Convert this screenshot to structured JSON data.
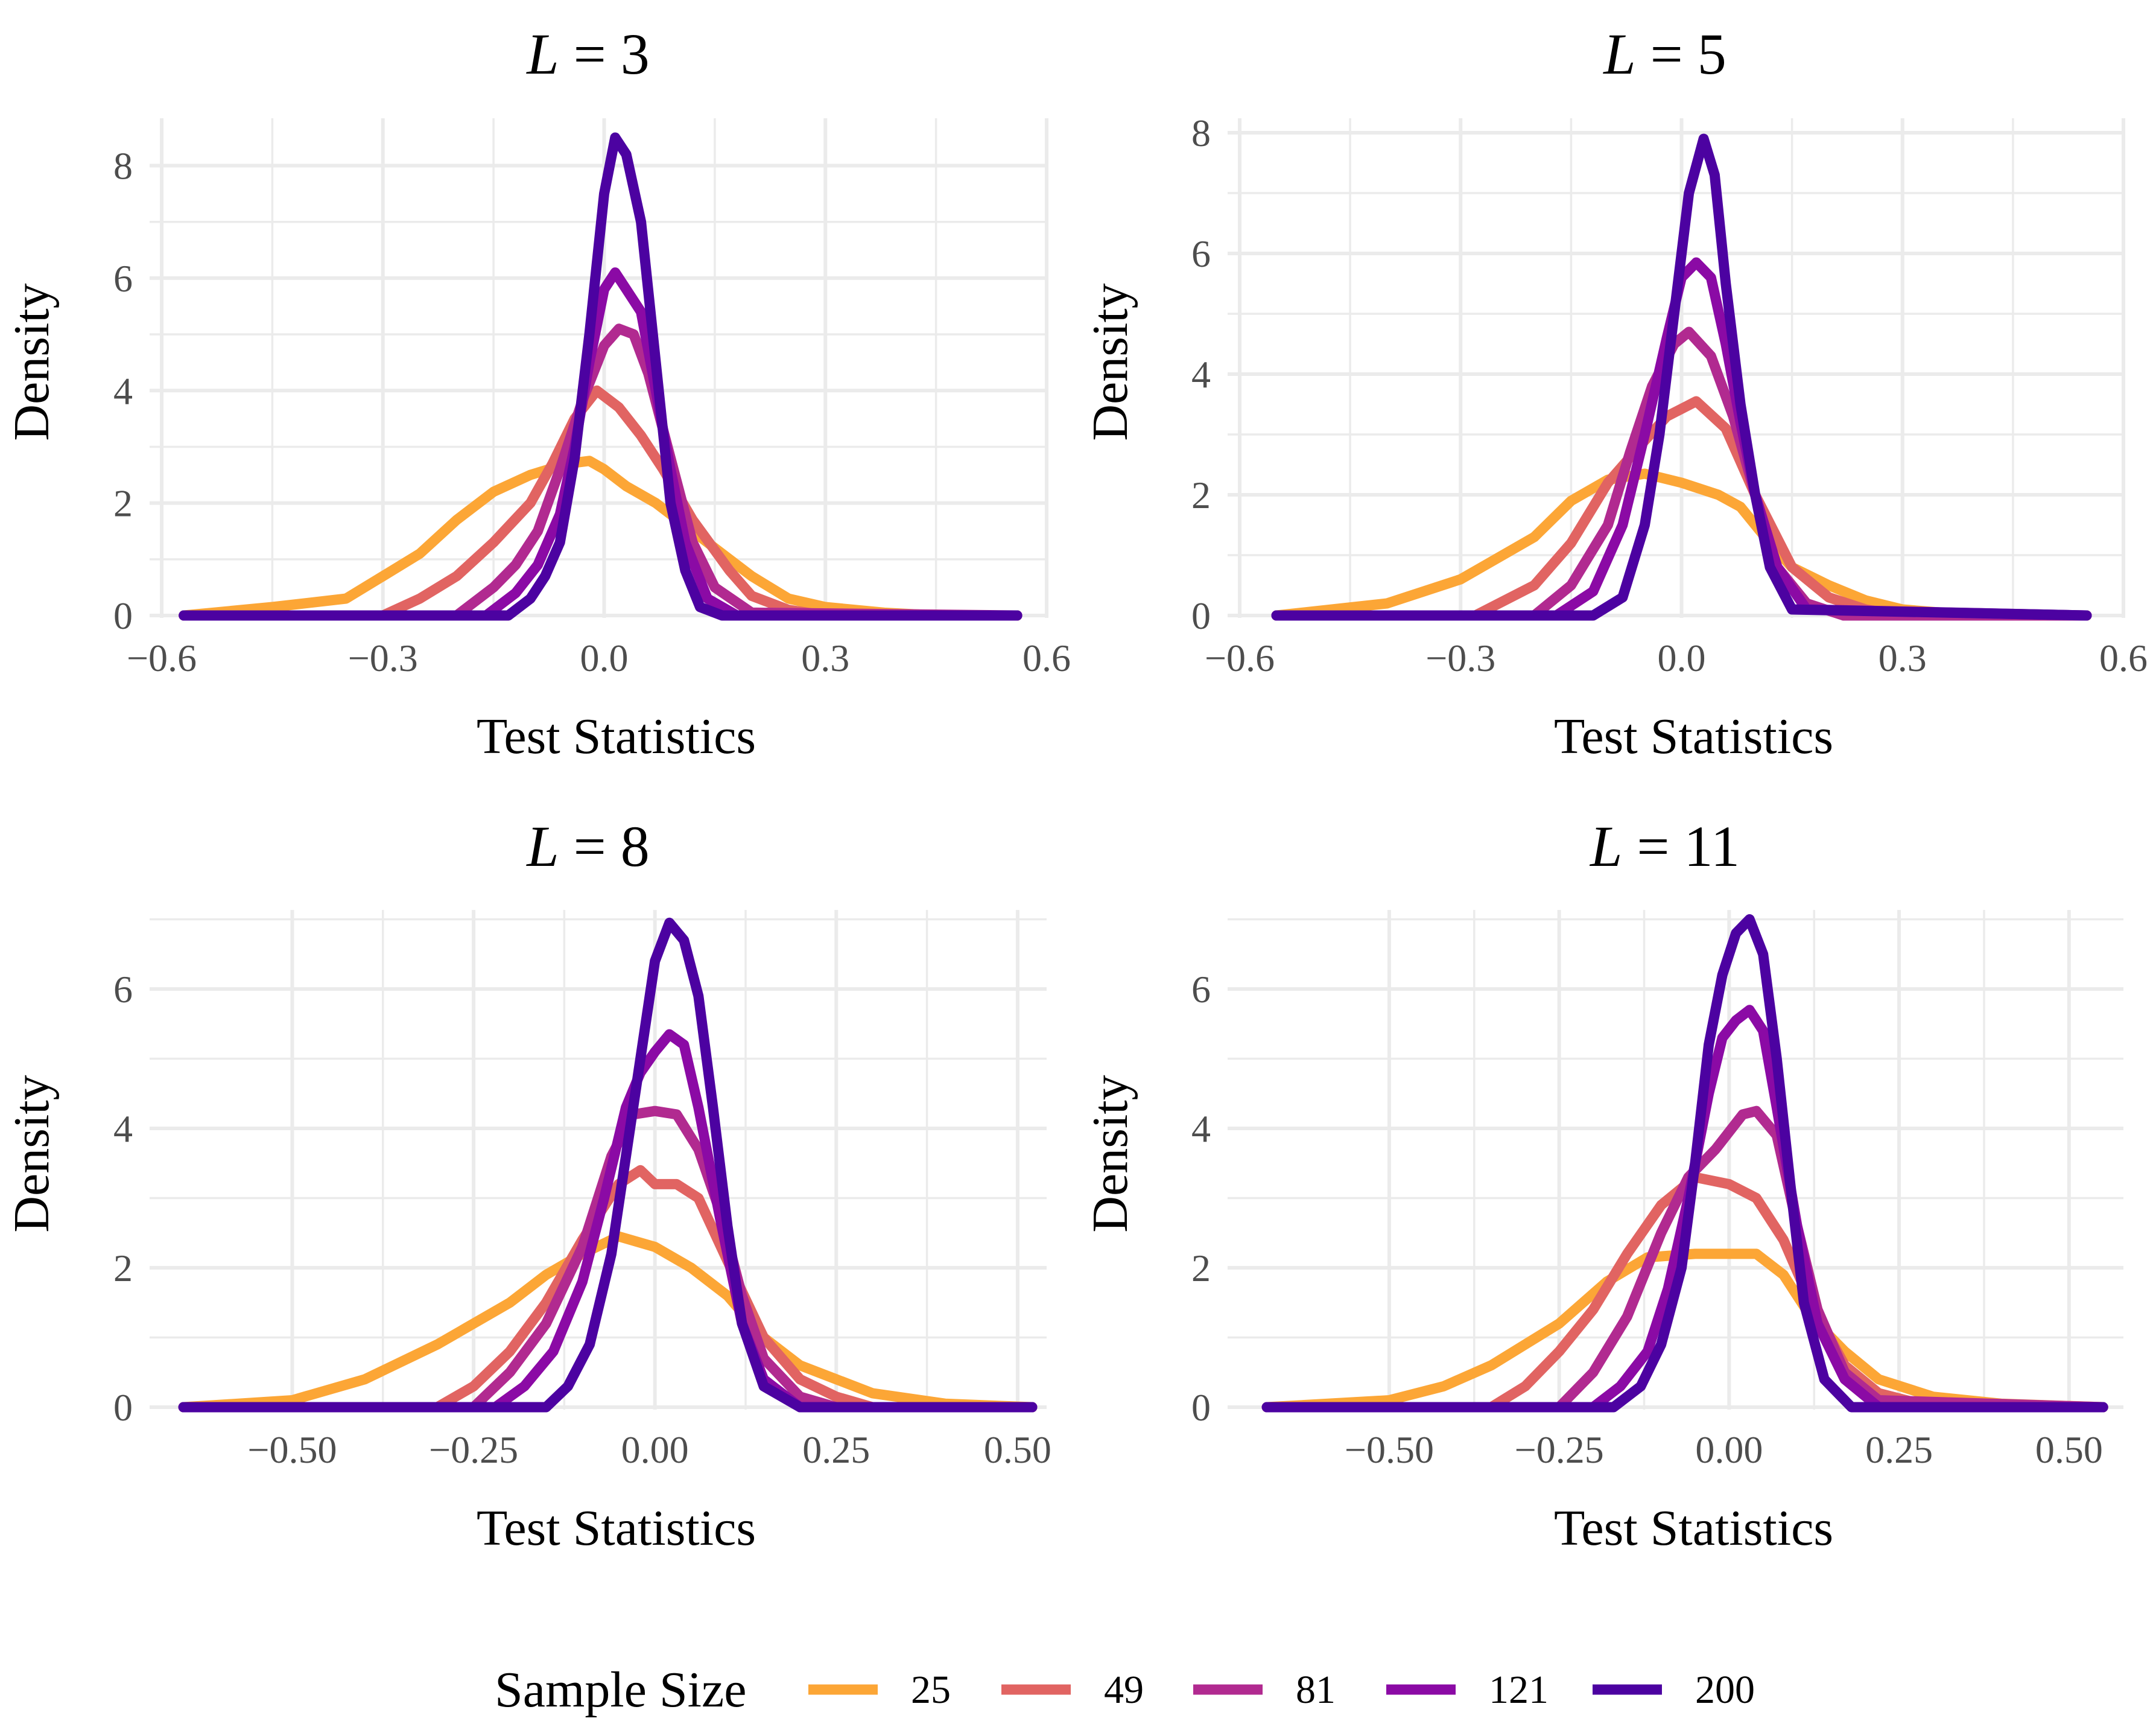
{
  "legend": {
    "title": "Sample Size",
    "entries": [
      "25",
      "49",
      "81",
      "121",
      "200"
    ],
    "colors": [
      "#FCA636",
      "#E16462",
      "#B12A90",
      "#8B0AA5",
      "#4C02A1"
    ]
  },
  "chart_data": [
    {
      "type": "line",
      "title": "L = 3",
      "title_var": "L",
      "title_rest": " = 3",
      "xlabel": "Test Statistics",
      "ylabel": "Density",
      "xlim": [
        -0.6,
        0.6
      ],
      "ylim": [
        0,
        8.8
      ],
      "xticks": [
        -0.6,
        -0.3,
        0.0,
        0.3,
        0.6
      ],
      "xtick_labels": [
        "−0.6",
        "−0.3",
        "0.0",
        "0.3",
        "0.6"
      ],
      "yticks": [
        0,
        2,
        4,
        6,
        8
      ],
      "ytick_labels": [
        "0",
        "2",
        "4",
        "6",
        "8"
      ],
      "series": [
        {
          "name": "25",
          "color": "#FCA636",
          "x": [
            -0.57,
            -0.45,
            -0.35,
            -0.3,
            -0.25,
            -0.2,
            -0.15,
            -0.1,
            -0.05,
            -0.02,
            0.0,
            0.03,
            0.07,
            0.1,
            0.15,
            0.2,
            0.25,
            0.3,
            0.38,
            0.45,
            0.56
          ],
          "y": [
            0,
            0.15,
            0.3,
            0.7,
            1.1,
            1.7,
            2.2,
            2.5,
            2.7,
            2.75,
            2.6,
            2.3,
            2.0,
            1.7,
            1.2,
            0.7,
            0.3,
            0.15,
            0.05,
            0,
            0
          ]
        },
        {
          "name": "49",
          "color": "#E16462",
          "x": [
            -0.57,
            -0.3,
            -0.25,
            -0.2,
            -0.15,
            -0.1,
            -0.07,
            -0.04,
            -0.01,
            0.02,
            0.05,
            0.08,
            0.12,
            0.17,
            0.2,
            0.25,
            0.3,
            0.56
          ],
          "y": [
            0,
            0,
            0.3,
            0.7,
            1.3,
            2.0,
            2.7,
            3.5,
            4.0,
            3.7,
            3.2,
            2.6,
            1.7,
            0.8,
            0.35,
            0.1,
            0,
            0
          ]
        },
        {
          "name": "81",
          "color": "#B12A90",
          "x": [
            -0.57,
            -0.2,
            -0.15,
            -0.12,
            -0.09,
            -0.06,
            -0.03,
            0.0,
            0.02,
            0.04,
            0.06,
            0.08,
            0.1,
            0.12,
            0.15,
            0.2,
            0.56
          ],
          "y": [
            0,
            0,
            0.5,
            0.9,
            1.5,
            2.6,
            3.8,
            4.8,
            5.1,
            5.0,
            4.3,
            3.3,
            2.3,
            1.3,
            0.5,
            0.05,
            0
          ]
        },
        {
          "name": "121",
          "color": "#8B0AA5",
          "x": [
            -0.57,
            -0.16,
            -0.12,
            -0.09,
            -0.06,
            -0.04,
            -0.02,
            0.0,
            0.015,
            0.03,
            0.05,
            0.07,
            0.09,
            0.11,
            0.14,
            0.18,
            0.56
          ],
          "y": [
            0,
            0,
            0.4,
            0.9,
            1.8,
            3.0,
            4.5,
            5.8,
            6.1,
            5.8,
            5.4,
            4.0,
            2.6,
            1.3,
            0.3,
            0,
            0
          ]
        },
        {
          "name": "200",
          "color": "#4C02A1",
          "x": [
            -0.57,
            -0.13,
            -0.1,
            -0.08,
            -0.06,
            -0.04,
            -0.02,
            0.0,
            0.015,
            0.03,
            0.05,
            0.07,
            0.09,
            0.11,
            0.13,
            0.16,
            0.56
          ],
          "y": [
            0,
            0,
            0.3,
            0.7,
            1.3,
            2.8,
            5.0,
            7.5,
            8.5,
            8.2,
            7.0,
            4.5,
            2.0,
            0.8,
            0.15,
            0,
            0
          ]
        }
      ]
    },
    {
      "type": "line",
      "title": "L = 5",
      "title_var": "L",
      "title_rest": " = 5",
      "xlabel": "Test Statistics",
      "ylabel": "Density",
      "xlim": [
        -0.6,
        0.6
      ],
      "ylim": [
        0,
        8.2
      ],
      "xticks": [
        -0.6,
        -0.3,
        0.0,
        0.3,
        0.6
      ],
      "xtick_labels": [
        "−0.6",
        "−0.3",
        "0.0",
        "0.3",
        "0.6"
      ],
      "yticks": [
        0,
        2,
        4,
        6,
        8
      ],
      "ytick_labels": [
        "0",
        "2",
        "4",
        "6",
        "8"
      ],
      "series": [
        {
          "name": "25",
          "color": "#FCA636",
          "x": [
            -0.55,
            -0.4,
            -0.3,
            -0.2,
            -0.15,
            -0.1,
            -0.05,
            0.0,
            0.05,
            0.08,
            0.12,
            0.15,
            0.2,
            0.25,
            0.3,
            0.4,
            0.55
          ],
          "y": [
            0,
            0.2,
            0.6,
            1.3,
            1.9,
            2.25,
            2.35,
            2.2,
            2.0,
            1.8,
            1.2,
            0.8,
            0.5,
            0.25,
            0.1,
            0,
            0
          ]
        },
        {
          "name": "49",
          "color": "#E16462",
          "x": [
            -0.55,
            -0.28,
            -0.2,
            -0.15,
            -0.1,
            -0.05,
            -0.02,
            0.02,
            0.06,
            0.1,
            0.15,
            0.2,
            0.25,
            0.3,
            0.55
          ],
          "y": [
            0,
            0,
            0.5,
            1.2,
            2.2,
            2.9,
            3.3,
            3.55,
            3.1,
            2.0,
            0.8,
            0.3,
            0.1,
            0,
            0
          ]
        },
        {
          "name": "81",
          "color": "#B12A90",
          "x": [
            -0.55,
            -0.2,
            -0.15,
            -0.1,
            -0.07,
            -0.04,
            -0.01,
            0.01,
            0.04,
            0.07,
            0.1,
            0.13,
            0.17,
            0.22,
            0.55
          ],
          "y": [
            0,
            0,
            0.5,
            1.5,
            2.7,
            3.8,
            4.5,
            4.7,
            4.3,
            3.3,
            2.0,
            0.8,
            0.2,
            0,
            0
          ]
        },
        {
          "name": "121",
          "color": "#8B0AA5",
          "x": [
            -0.55,
            -0.17,
            -0.12,
            -0.08,
            -0.05,
            -0.02,
            0.0,
            0.02,
            0.04,
            0.06,
            0.08,
            0.1,
            0.13,
            0.17,
            0.55
          ],
          "y": [
            0,
            0,
            0.4,
            1.5,
            3.0,
            4.6,
            5.6,
            5.85,
            5.6,
            4.5,
            3.2,
            2.0,
            0.8,
            0.1,
            0
          ]
        },
        {
          "name": "200",
          "color": "#4C02A1",
          "x": [
            -0.55,
            -0.12,
            -0.08,
            -0.05,
            -0.03,
            -0.01,
            0.01,
            0.03,
            0.045,
            0.06,
            0.08,
            0.1,
            0.12,
            0.15,
            0.55
          ],
          "y": [
            0,
            0,
            0.3,
            1.5,
            3.0,
            5.0,
            7.0,
            7.9,
            7.3,
            5.5,
            3.5,
            2.0,
            0.8,
            0.1,
            0
          ]
        }
      ]
    },
    {
      "type": "line",
      "title": "L = 8",
      "title_var": "L",
      "title_rest": " = 8",
      "xlabel": "Test Statistics",
      "ylabel": "Density",
      "xlim": [
        -0.68,
        0.54
      ],
      "ylim": [
        0,
        7.1
      ],
      "xticks": [
        -0.5,
        -0.25,
        0.0,
        0.25,
        0.5
      ],
      "xtick_labels": [
        "−0.50",
        "−0.25",
        "0.00",
        "0.25",
        "0.50"
      ],
      "yticks": [
        0,
        2,
        4,
        6
      ],
      "ytick_labels": [
        "0",
        "2",
        "4",
        "6"
      ],
      "series": [
        {
          "name": "25",
          "color": "#FCA636",
          "x": [
            -0.65,
            -0.5,
            -0.4,
            -0.3,
            -0.2,
            -0.15,
            -0.1,
            -0.05,
            0.0,
            0.05,
            0.1,
            0.15,
            0.2,
            0.25,
            0.3,
            0.4,
            0.52
          ],
          "y": [
            0,
            0.1,
            0.4,
            0.9,
            1.5,
            1.9,
            2.2,
            2.45,
            2.3,
            2.0,
            1.6,
            1.0,
            0.6,
            0.4,
            0.2,
            0.05,
            0
          ]
        },
        {
          "name": "49",
          "color": "#E16462",
          "x": [
            -0.65,
            -0.3,
            -0.25,
            -0.2,
            -0.15,
            -0.1,
            -0.05,
            -0.02,
            0.0,
            0.03,
            0.06,
            0.1,
            0.15,
            0.2,
            0.25,
            0.3,
            0.52
          ],
          "y": [
            0,
            0,
            0.3,
            0.8,
            1.5,
            2.4,
            3.2,
            3.4,
            3.2,
            3.2,
            3.0,
            2.1,
            1.0,
            0.4,
            0.15,
            0,
            0
          ]
        },
        {
          "name": "81",
          "color": "#B12A90",
          "x": [
            -0.65,
            -0.25,
            -0.2,
            -0.15,
            -0.1,
            -0.06,
            -0.03,
            0.0,
            0.03,
            0.06,
            0.09,
            0.12,
            0.15,
            0.2,
            0.25,
            0.52
          ],
          "y": [
            0,
            0,
            0.5,
            1.2,
            2.3,
            3.6,
            4.2,
            4.25,
            4.2,
            3.7,
            2.8,
            1.6,
            0.7,
            0.15,
            0,
            0
          ]
        },
        {
          "name": "121",
          "color": "#8B0AA5",
          "x": [
            -0.65,
            -0.22,
            -0.18,
            -0.14,
            -0.1,
            -0.07,
            -0.04,
            -0.02,
            0.0,
            0.02,
            0.04,
            0.06,
            0.09,
            0.12,
            0.15,
            0.2,
            0.52
          ],
          "y": [
            0,
            0,
            0.3,
            0.8,
            1.8,
            3.0,
            4.3,
            4.8,
            5.1,
            5.35,
            5.2,
            4.3,
            2.7,
            1.2,
            0.4,
            0,
            0
          ]
        },
        {
          "name": "200",
          "color": "#4C02A1",
          "x": [
            -0.65,
            -0.15,
            -0.12,
            -0.09,
            -0.06,
            -0.04,
            -0.02,
            0.0,
            0.02,
            0.04,
            0.06,
            0.08,
            0.1,
            0.12,
            0.15,
            0.2,
            0.52
          ],
          "y": [
            0,
            0,
            0.3,
            0.9,
            2.2,
            3.6,
            5.0,
            6.4,
            6.95,
            6.7,
            5.9,
            4.3,
            2.6,
            1.2,
            0.3,
            0,
            0
          ]
        }
      ]
    },
    {
      "type": "line",
      "title": "L = 11",
      "title_var": "L",
      "title_rest": " = 11",
      "xlabel": "Test Statistics",
      "ylabel": "Density",
      "xlim": [
        -0.72,
        0.58
      ],
      "ylim": [
        0,
        7.1
      ],
      "xticks": [
        -0.5,
        -0.25,
        0.0,
        0.25,
        0.5
      ],
      "xtick_labels": [
        "−0.50",
        "−0.25",
        "0.00",
        "0.25",
        "0.50"
      ],
      "yticks": [
        0,
        2,
        4,
        6
      ],
      "ytick_labels": [
        "0",
        "2",
        "4",
        "6"
      ],
      "series": [
        {
          "name": "25",
          "color": "#FCA636",
          "x": [
            -0.68,
            -0.5,
            -0.42,
            -0.35,
            -0.25,
            -0.18,
            -0.12,
            -0.05,
            0.0,
            0.04,
            0.08,
            0.12,
            0.17,
            0.22,
            0.3,
            0.4,
            0.55
          ],
          "y": [
            0,
            0.1,
            0.3,
            0.6,
            1.2,
            1.8,
            2.15,
            2.2,
            2.2,
            2.2,
            1.9,
            1.3,
            0.8,
            0.4,
            0.15,
            0.05,
            0
          ]
        },
        {
          "name": "49",
          "color": "#E16462",
          "x": [
            -0.68,
            -0.35,
            -0.3,
            -0.25,
            -0.2,
            -0.15,
            -0.1,
            -0.05,
            0.0,
            0.04,
            0.08,
            0.12,
            0.17,
            0.22,
            0.3,
            0.55
          ],
          "y": [
            0,
            0,
            0.3,
            0.8,
            1.4,
            2.2,
            2.9,
            3.3,
            3.2,
            3.0,
            2.4,
            1.5,
            0.6,
            0.2,
            0,
            0
          ]
        },
        {
          "name": "81",
          "color": "#B12A90",
          "x": [
            -0.68,
            -0.25,
            -0.2,
            -0.15,
            -0.1,
            -0.06,
            -0.02,
            0.02,
            0.04,
            0.07,
            0.1,
            0.13,
            0.17,
            0.22,
            0.55
          ],
          "y": [
            0,
            0,
            0.5,
            1.3,
            2.5,
            3.3,
            3.7,
            4.2,
            4.25,
            3.9,
            2.6,
            1.4,
            0.5,
            0.1,
            0
          ]
        },
        {
          "name": "121",
          "color": "#8B0AA5",
          "x": [
            -0.68,
            -0.2,
            -0.16,
            -0.12,
            -0.09,
            -0.06,
            -0.03,
            -0.01,
            0.01,
            0.03,
            0.05,
            0.07,
            0.1,
            0.13,
            0.17,
            0.22,
            0.55
          ],
          "y": [
            0,
            0,
            0.3,
            0.8,
            1.7,
            3.0,
            4.5,
            5.3,
            5.55,
            5.7,
            5.4,
            4.3,
            2.6,
            1.2,
            0.4,
            0,
            0
          ]
        },
        {
          "name": "200",
          "color": "#4C02A1",
          "x": [
            -0.68,
            -0.17,
            -0.13,
            -0.1,
            -0.07,
            -0.05,
            -0.03,
            -0.01,
            0.01,
            0.03,
            0.05,
            0.07,
            0.09,
            0.11,
            0.14,
            0.18,
            0.55
          ],
          "y": [
            0,
            0,
            0.3,
            0.9,
            2.0,
            3.5,
            5.2,
            6.2,
            6.8,
            7.0,
            6.5,
            5.0,
            3.2,
            1.5,
            0.4,
            0,
            0
          ]
        }
      ]
    }
  ]
}
